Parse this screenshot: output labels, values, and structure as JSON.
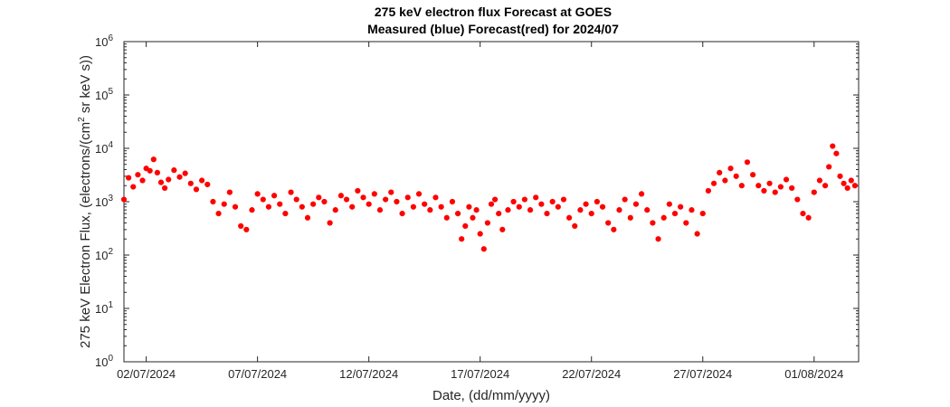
{
  "chart_data": {
    "type": "scatter",
    "title": "275 keV electron flux Forecast at GOES",
    "subtitle": "Measured (blue) Forecast(red) for 2024/07",
    "xlabel": "Date, (dd/mm/yyyy)",
    "ylabel_parts": [
      "275 keV Electron Flux, (electrons/(cm",
      "2",
      " sr keV s))"
    ],
    "y_scale": "log",
    "ylim": [
      1,
      1000000
    ],
    "y_ticks": [
      {
        "value": 1,
        "base": "10",
        "exp": "0"
      },
      {
        "value": 10,
        "base": "10",
        "exp": "1"
      },
      {
        "value": 100,
        "base": "10",
        "exp": "2"
      },
      {
        "value": 1000,
        "base": "10",
        "exp": "3"
      },
      {
        "value": 10000,
        "base": "10",
        "exp": "4"
      },
      {
        "value": 100000,
        "base": "10",
        "exp": "5"
      },
      {
        "value": 1000000,
        "base": "10",
        "exp": "6"
      }
    ],
    "xlim": [
      "2024-07-01",
      "2024-08-03"
    ],
    "x_ticks": [
      "02/07/2024",
      "07/07/2024",
      "12/07/2024",
      "17/07/2024",
      "22/07/2024",
      "27/07/2024",
      "01/08/2024"
    ],
    "x_tick_dates": [
      "2024-07-02",
      "2024-07-07",
      "2024-07-12",
      "2024-07-17",
      "2024-07-22",
      "2024-07-27",
      "2024-08-01"
    ],
    "grid": false,
    "series": [
      {
        "color": "#ff0000",
        "marker": "circle",
        "points": [
          [
            "2024-07-01T00:00",
            1100
          ],
          [
            "2024-07-01T05:00",
            2800
          ],
          [
            "2024-07-01T10:00",
            1900
          ],
          [
            "2024-07-01T15:00",
            3200
          ],
          [
            "2024-07-01T20:00",
            2500
          ],
          [
            "2024-07-02T00:00",
            4200
          ],
          [
            "2024-07-02T04:00",
            3800
          ],
          [
            "2024-07-02T08:00",
            6200
          ],
          [
            "2024-07-02T12:00",
            3500
          ],
          [
            "2024-07-02T16:00",
            2300
          ],
          [
            "2024-07-02T20:00",
            1800
          ],
          [
            "2024-07-03T00:00",
            2600
          ],
          [
            "2024-07-03T06:00",
            3900
          ],
          [
            "2024-07-03T12:00",
            2900
          ],
          [
            "2024-07-03T18:00",
            3400
          ],
          [
            "2024-07-04T00:00",
            2200
          ],
          [
            "2024-07-04T06:00",
            1700
          ],
          [
            "2024-07-04T12:00",
            2500
          ],
          [
            "2024-07-04T18:00",
            2100
          ],
          [
            "2024-07-05T00:00",
            1000
          ],
          [
            "2024-07-05T06:00",
            600
          ],
          [
            "2024-07-05T12:00",
            900
          ],
          [
            "2024-07-05T18:00",
            1500
          ],
          [
            "2024-07-06T00:00",
            800
          ],
          [
            "2024-07-06T06:00",
            350
          ],
          [
            "2024-07-06T12:00",
            300
          ],
          [
            "2024-07-06T18:00",
            700
          ],
          [
            "2024-07-07T00:00",
            1400
          ],
          [
            "2024-07-07T06:00",
            1100
          ],
          [
            "2024-07-07T12:00",
            800
          ],
          [
            "2024-07-07T18:00",
            1300
          ],
          [
            "2024-07-08T00:00",
            900
          ],
          [
            "2024-07-08T06:00",
            600
          ],
          [
            "2024-07-08T12:00",
            1500
          ],
          [
            "2024-07-08T18:00",
            1100
          ],
          [
            "2024-07-09T00:00",
            800
          ],
          [
            "2024-07-09T06:00",
            500
          ],
          [
            "2024-07-09T12:00",
            900
          ],
          [
            "2024-07-09T18:00",
            1200
          ],
          [
            "2024-07-10T00:00",
            1000
          ],
          [
            "2024-07-10T06:00",
            400
          ],
          [
            "2024-07-10T12:00",
            700
          ],
          [
            "2024-07-10T18:00",
            1300
          ],
          [
            "2024-07-11T00:00",
            1100
          ],
          [
            "2024-07-11T06:00",
            800
          ],
          [
            "2024-07-11T12:00",
            1600
          ],
          [
            "2024-07-11T18:00",
            1200
          ],
          [
            "2024-07-12T00:00",
            900
          ],
          [
            "2024-07-12T06:00",
            1400
          ],
          [
            "2024-07-12T12:00",
            700
          ],
          [
            "2024-07-12T18:00",
            1100
          ],
          [
            "2024-07-13T00:00",
            1500
          ],
          [
            "2024-07-13T06:00",
            1000
          ],
          [
            "2024-07-13T12:00",
            600
          ],
          [
            "2024-07-13T18:00",
            1200
          ],
          [
            "2024-07-14T00:00",
            800
          ],
          [
            "2024-07-14T06:00",
            1400
          ],
          [
            "2024-07-14T12:00",
            900
          ],
          [
            "2024-07-14T18:00",
            700
          ],
          [
            "2024-07-15T00:00",
            1200
          ],
          [
            "2024-07-15T06:00",
            800
          ],
          [
            "2024-07-15T12:00",
            500
          ],
          [
            "2024-07-15T18:00",
            1000
          ],
          [
            "2024-07-16T00:00",
            600
          ],
          [
            "2024-07-16T04:00",
            200
          ],
          [
            "2024-07-16T08:00",
            350
          ],
          [
            "2024-07-16T12:00",
            800
          ],
          [
            "2024-07-16T16:00",
            500
          ],
          [
            "2024-07-16T20:00",
            700
          ],
          [
            "2024-07-17T00:00",
            250
          ],
          [
            "2024-07-17T04:00",
            130
          ],
          [
            "2024-07-17T08:00",
            400
          ],
          [
            "2024-07-17T12:00",
            900
          ],
          [
            "2024-07-17T16:00",
            1100
          ],
          [
            "2024-07-17T20:00",
            600
          ],
          [
            "2024-07-18T00:00",
            300
          ],
          [
            "2024-07-18T06:00",
            700
          ],
          [
            "2024-07-18T12:00",
            1000
          ],
          [
            "2024-07-18T18:00",
            800
          ],
          [
            "2024-07-19T00:00",
            1100
          ],
          [
            "2024-07-19T06:00",
            700
          ],
          [
            "2024-07-19T12:00",
            1200
          ],
          [
            "2024-07-19T18:00",
            900
          ],
          [
            "2024-07-20T00:00",
            600
          ],
          [
            "2024-07-20T06:00",
            1000
          ],
          [
            "2024-07-20T12:00",
            800
          ],
          [
            "2024-07-20T18:00",
            1100
          ],
          [
            "2024-07-21T00:00",
            500
          ],
          [
            "2024-07-21T06:00",
            350
          ],
          [
            "2024-07-21T12:00",
            700
          ],
          [
            "2024-07-21T18:00",
            900
          ],
          [
            "2024-07-22T00:00",
            600
          ],
          [
            "2024-07-22T06:00",
            1000
          ],
          [
            "2024-07-22T12:00",
            800
          ],
          [
            "2024-07-22T18:00",
            400
          ],
          [
            "2024-07-23T00:00",
            300
          ],
          [
            "2024-07-23T06:00",
            700
          ],
          [
            "2024-07-23T12:00",
            1100
          ],
          [
            "2024-07-23T18:00",
            500
          ],
          [
            "2024-07-24T00:00",
            900
          ],
          [
            "2024-07-24T06:00",
            1400
          ],
          [
            "2024-07-24T12:00",
            700
          ],
          [
            "2024-07-24T18:00",
            400
          ],
          [
            "2024-07-25T00:00",
            200
          ],
          [
            "2024-07-25T06:00",
            500
          ],
          [
            "2024-07-25T12:00",
            900
          ],
          [
            "2024-07-25T18:00",
            600
          ],
          [
            "2024-07-26T00:00",
            800
          ],
          [
            "2024-07-26T06:00",
            400
          ],
          [
            "2024-07-26T12:00",
            700
          ],
          [
            "2024-07-26T18:00",
            250
          ],
          [
            "2024-07-27T00:00",
            600
          ],
          [
            "2024-07-27T06:00",
            1600
          ],
          [
            "2024-07-27T12:00",
            2200
          ],
          [
            "2024-07-27T18:00",
            3500
          ],
          [
            "2024-07-28T00:00",
            2500
          ],
          [
            "2024-07-28T06:00",
            4200
          ],
          [
            "2024-07-28T12:00",
            3000
          ],
          [
            "2024-07-28T18:00",
            2000
          ],
          [
            "2024-07-29T00:00",
            5500
          ],
          [
            "2024-07-29T06:00",
            3200
          ],
          [
            "2024-07-29T12:00",
            2000
          ],
          [
            "2024-07-29T18:00",
            1600
          ],
          [
            "2024-07-30T00:00",
            2200
          ],
          [
            "2024-07-30T06:00",
            1500
          ],
          [
            "2024-07-30T12:00",
            1900
          ],
          [
            "2024-07-30T18:00",
            2600
          ],
          [
            "2024-07-31T00:00",
            1800
          ],
          [
            "2024-07-31T06:00",
            1100
          ],
          [
            "2024-07-31T12:00",
            600
          ],
          [
            "2024-07-31T18:00",
            500
          ],
          [
            "2024-08-01T00:00",
            1500
          ],
          [
            "2024-08-01T06:00",
            2500
          ],
          [
            "2024-08-01T12:00",
            2000
          ],
          [
            "2024-08-01T16:00",
            4500
          ],
          [
            "2024-08-01T20:00",
            11000
          ],
          [
            "2024-08-02T00:00",
            8000
          ],
          [
            "2024-08-02T04:00",
            3000
          ],
          [
            "2024-08-02T08:00",
            2200
          ],
          [
            "2024-08-02T12:00",
            1800
          ],
          [
            "2024-08-02T16:00",
            2500
          ],
          [
            "2024-08-02T20:00",
            2000
          ]
        ]
      }
    ]
  }
}
